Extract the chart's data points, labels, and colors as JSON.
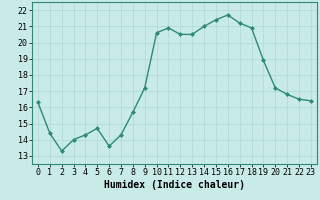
{
  "x": [
    0,
    1,
    2,
    3,
    4,
    5,
    6,
    7,
    8,
    9,
    10,
    11,
    12,
    13,
    14,
    15,
    16,
    17,
    18,
    19,
    20,
    21,
    22,
    23
  ],
  "y": [
    16.3,
    14.4,
    13.3,
    14.0,
    14.3,
    14.7,
    13.6,
    14.3,
    15.7,
    17.2,
    20.6,
    20.9,
    20.5,
    20.5,
    21.0,
    21.4,
    21.7,
    21.2,
    20.9,
    18.9,
    17.2,
    16.8,
    16.5,
    16.4
  ],
  "line_color": "#2e8b71",
  "bg_color": "#c8ebe8",
  "grid_color": "#b0d8d4",
  "xlabel": "Humidex (Indice chaleur)",
  "ylabel_ticks": [
    13,
    14,
    15,
    16,
    17,
    18,
    19,
    20,
    21,
    22
  ],
  "xlim": [
    -0.5,
    23.5
  ],
  "ylim": [
    12.5,
    22.5
  ],
  "xticks": [
    0,
    1,
    2,
    3,
    4,
    5,
    6,
    7,
    8,
    9,
    10,
    11,
    12,
    13,
    14,
    15,
    16,
    17,
    18,
    19,
    20,
    21,
    22,
    23
  ],
  "marker": "D",
  "marker_size": 2.0,
  "linewidth": 1.0,
  "tick_font_size": 6.0,
  "xlabel_font_size": 7.0
}
